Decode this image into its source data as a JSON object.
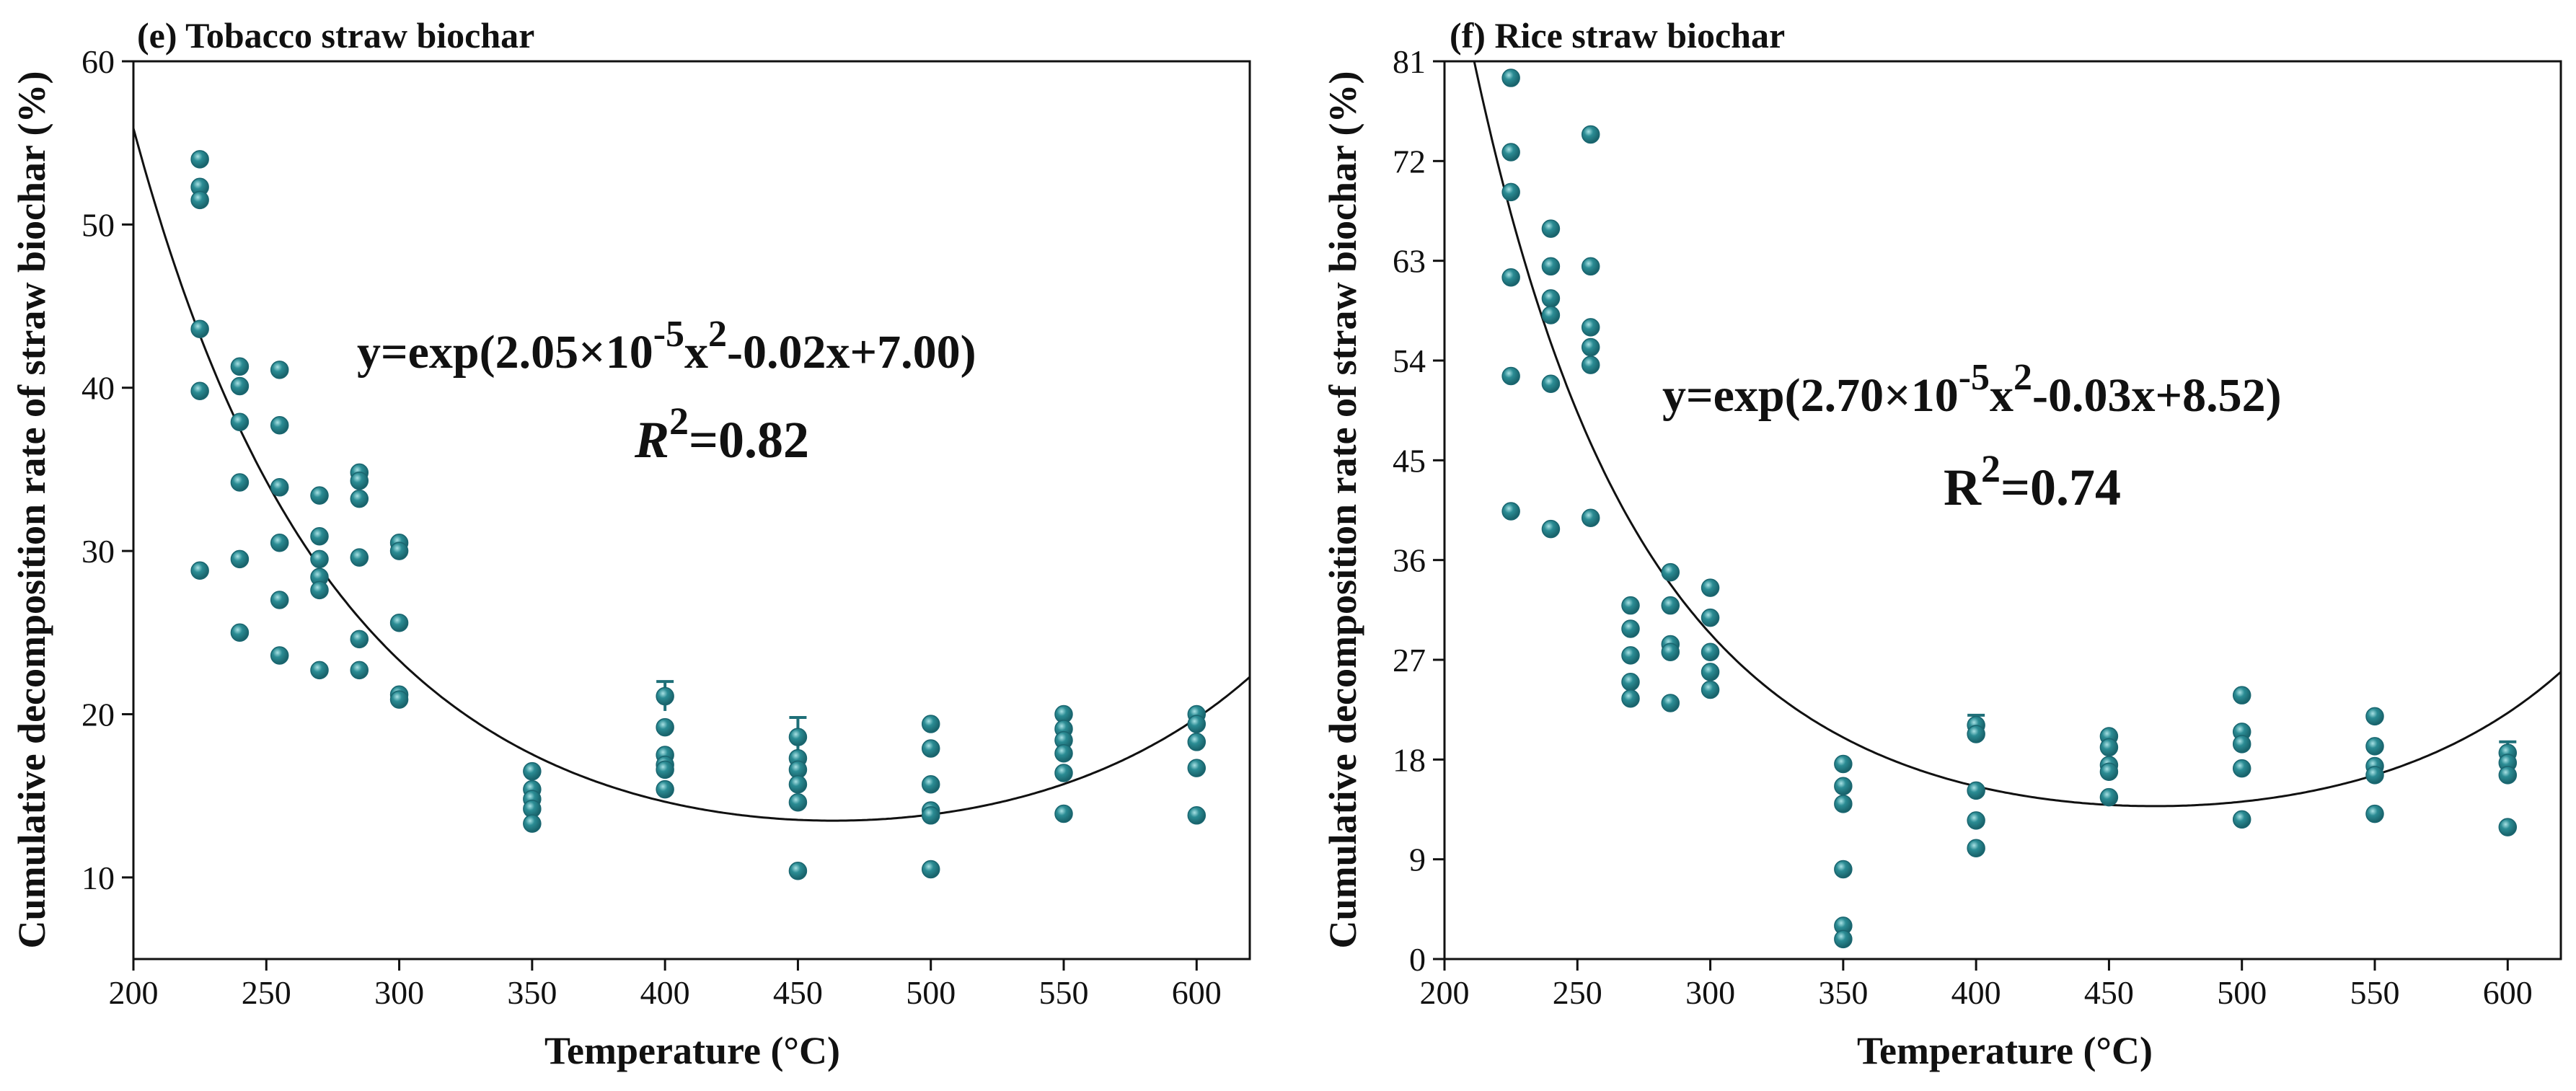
{
  "colors": {
    "point": "#2b8c94",
    "point_edge": "#1a6670",
    "axis": "#111111",
    "fit": "#111111"
  },
  "chart_data": [
    {
      "type": "scatter",
      "title": "(e) Tobacco straw biochar",
      "xlabel": "Temperature (°C)",
      "ylabel": "Cumulative decomposition rate of straw biochar (%)",
      "xlim": [
        200,
        620
      ],
      "ylim": [
        5,
        60
      ],
      "xticks": [
        200,
        250,
        300,
        350,
        400,
        450,
        500,
        550,
        600
      ],
      "yticks": [
        10,
        20,
        30,
        40,
        50,
        60
      ],
      "equation": {
        "prefix": "y=exp(2.05×10",
        "exp1": "-5",
        "mid": "x",
        "exp2": "2",
        "suffix": "-0.02x+7.00)"
      },
      "r2": {
        "R": "R",
        "sup": "2",
        "value": "=0.82",
        "italic": true
      },
      "fit": {
        "a": 2.05e-05,
        "b": -0.019,
        "c": 7.0035
      },
      "points": [
        {
          "x": 225,
          "y": 54.0
        },
        {
          "x": 225,
          "y": 52.3
        },
        {
          "x": 225,
          "y": 51.5
        },
        {
          "x": 225,
          "y": 43.6
        },
        {
          "x": 225,
          "y": 39.8
        },
        {
          "x": 225,
          "y": 28.8
        },
        {
          "x": 240,
          "y": 41.3
        },
        {
          "x": 240,
          "y": 40.1
        },
        {
          "x": 240,
          "y": 37.9
        },
        {
          "x": 240,
          "y": 34.2
        },
        {
          "x": 240,
          "y": 29.5
        },
        {
          "x": 240,
          "y": 25.0
        },
        {
          "x": 255,
          "y": 41.1
        },
        {
          "x": 255,
          "y": 37.7
        },
        {
          "x": 255,
          "y": 33.9
        },
        {
          "x": 255,
          "y": 30.5
        },
        {
          "x": 255,
          "y": 27.0
        },
        {
          "x": 255,
          "y": 23.6
        },
        {
          "x": 270,
          "y": 33.4
        },
        {
          "x": 270,
          "y": 30.9
        },
        {
          "x": 270,
          "y": 29.5
        },
        {
          "x": 270,
          "y": 28.4
        },
        {
          "x": 270,
          "y": 27.6
        },
        {
          "x": 270,
          "y": 22.7
        },
        {
          "x": 285,
          "y": 34.8
        },
        {
          "x": 285,
          "y": 34.3
        },
        {
          "x": 285,
          "y": 33.2
        },
        {
          "x": 285,
          "y": 29.6
        },
        {
          "x": 285,
          "y": 24.6
        },
        {
          "x": 285,
          "y": 22.7
        },
        {
          "x": 300,
          "y": 30.5
        },
        {
          "x": 300,
          "y": 30.0
        },
        {
          "x": 300,
          "y": 25.6
        },
        {
          "x": 300,
          "y": 21.2
        },
        {
          "x": 300,
          "y": 20.9
        },
        {
          "x": 350,
          "y": 16.5
        },
        {
          "x": 350,
          "y": 15.4
        },
        {
          "x": 350,
          "y": 14.8
        },
        {
          "x": 350,
          "y": 14.2
        },
        {
          "x": 350,
          "y": 13.3
        },
        {
          "x": 400,
          "y": 21.1
        },
        {
          "x": 400,
          "y": 19.2
        },
        {
          "x": 400,
          "y": 17.5
        },
        {
          "x": 400,
          "y": 16.9
        },
        {
          "x": 400,
          "y": 16.6
        },
        {
          "x": 400,
          "y": 15.4
        },
        {
          "x": 450,
          "y": 18.6
        },
        {
          "x": 450,
          "y": 17.3
        },
        {
          "x": 450,
          "y": 16.6
        },
        {
          "x": 450,
          "y": 15.7
        },
        {
          "x": 450,
          "y": 14.6
        },
        {
          "x": 450,
          "y": 10.4
        },
        {
          "x": 500,
          "y": 19.4
        },
        {
          "x": 500,
          "y": 17.9
        },
        {
          "x": 500,
          "y": 15.7
        },
        {
          "x": 500,
          "y": 14.1
        },
        {
          "x": 500,
          "y": 13.8
        },
        {
          "x": 500,
          "y": 10.5
        },
        {
          "x": 550,
          "y": 20.0
        },
        {
          "x": 550,
          "y": 19.1
        },
        {
          "x": 550,
          "y": 18.4
        },
        {
          "x": 550,
          "y": 17.6
        },
        {
          "x": 550,
          "y": 16.4
        },
        {
          "x": 550,
          "y": 13.9
        },
        {
          "x": 600,
          "y": 20.0
        },
        {
          "x": 600,
          "y": 19.4
        },
        {
          "x": 600,
          "y": 18.3
        },
        {
          "x": 600,
          "y": 16.7
        },
        {
          "x": 600,
          "y": 13.8
        }
      ],
      "error_bars": [
        {
          "x": 450,
          "low": 16.0,
          "high": 19.8
        },
        {
          "x": 400,
          "low": 20.2,
          "high": 22.0
        },
        {
          "x": 225,
          "low": 51.0,
          "high": 52.2
        }
      ]
    },
    {
      "type": "scatter",
      "title": "(f) Rice straw biochar",
      "xlabel": "Temperature (°C)",
      "ylabel": "Cumulative decomposition rate of straw biochar (%)",
      "xlim": [
        200,
        620
      ],
      "ylim": [
        0,
        81
      ],
      "xticks": [
        200,
        250,
        300,
        350,
        400,
        450,
        500,
        550,
        600
      ],
      "yticks": [
        0,
        9,
        18,
        27,
        36,
        45,
        54,
        63,
        72,
        81
      ],
      "equation": {
        "prefix": "y=exp(2.70×10",
        "exp1": "-5",
        "mid": "x",
        "exp2": "2",
        "suffix": "-0.03x+8.52)"
      },
      "r2": {
        "R": "R",
        "sup": "2",
        "value": "=0.74",
        "italic": false
      },
      "fit": {
        "a": 2.7e-05,
        "b": -0.02523,
        "c": 8.5184
      },
      "points": [
        {
          "x": 225,
          "y": 79.5
        },
        {
          "x": 225,
          "y": 72.8
        },
        {
          "x": 225,
          "y": 69.2
        },
        {
          "x": 225,
          "y": 61.5
        },
        {
          "x": 225,
          "y": 52.6
        },
        {
          "x": 225,
          "y": 40.4
        },
        {
          "x": 240,
          "y": 65.9
        },
        {
          "x": 240,
          "y": 62.5
        },
        {
          "x": 240,
          "y": 59.6
        },
        {
          "x": 240,
          "y": 58.1
        },
        {
          "x": 240,
          "y": 51.9
        },
        {
          "x": 240,
          "y": 38.8
        },
        {
          "x": 255,
          "y": 74.4
        },
        {
          "x": 255,
          "y": 62.5
        },
        {
          "x": 255,
          "y": 57.0
        },
        {
          "x": 255,
          "y": 55.2
        },
        {
          "x": 255,
          "y": 53.6
        },
        {
          "x": 255,
          "y": 39.8
        },
        {
          "x": 270,
          "y": 31.9
        },
        {
          "x": 270,
          "y": 29.8
        },
        {
          "x": 270,
          "y": 27.4
        },
        {
          "x": 270,
          "y": 25.0
        },
        {
          "x": 270,
          "y": 23.5
        },
        {
          "x": 285,
          "y": 34.9
        },
        {
          "x": 285,
          "y": 31.9
        },
        {
          "x": 285,
          "y": 28.4
        },
        {
          "x": 285,
          "y": 27.7
        },
        {
          "x": 285,
          "y": 23.1
        },
        {
          "x": 300,
          "y": 33.5
        },
        {
          "x": 300,
          "y": 30.8
        },
        {
          "x": 300,
          "y": 27.7
        },
        {
          "x": 300,
          "y": 25.9
        },
        {
          "x": 300,
          "y": 24.3
        },
        {
          "x": 350,
          "y": 17.6
        },
        {
          "x": 350,
          "y": 15.6
        },
        {
          "x": 350,
          "y": 14.0
        },
        {
          "x": 350,
          "y": 8.1
        },
        {
          "x": 350,
          "y": 3.0
        },
        {
          "x": 350,
          "y": 1.8
        },
        {
          "x": 400,
          "y": 21.1
        },
        {
          "x": 400,
          "y": 20.3
        },
        {
          "x": 400,
          "y": 15.2
        },
        {
          "x": 400,
          "y": 12.5
        },
        {
          "x": 400,
          "y": 10.0
        },
        {
          "x": 450,
          "y": 20.1
        },
        {
          "x": 450,
          "y": 19.1
        },
        {
          "x": 450,
          "y": 17.5
        },
        {
          "x": 450,
          "y": 16.9
        },
        {
          "x": 450,
          "y": 14.6
        },
        {
          "x": 500,
          "y": 23.8
        },
        {
          "x": 500,
          "y": 20.5
        },
        {
          "x": 500,
          "y": 19.4
        },
        {
          "x": 500,
          "y": 17.2
        },
        {
          "x": 500,
          "y": 12.6
        },
        {
          "x": 550,
          "y": 21.9
        },
        {
          "x": 550,
          "y": 19.2
        },
        {
          "x": 550,
          "y": 17.4
        },
        {
          "x": 550,
          "y": 16.6
        },
        {
          "x": 550,
          "y": 13.1
        },
        {
          "x": 600,
          "y": 18.6
        },
        {
          "x": 600,
          "y": 17.7
        },
        {
          "x": 600,
          "y": 16.6
        },
        {
          "x": 600,
          "y": 11.9
        }
      ],
      "error_bars": [
        {
          "x": 600,
          "low": 17.8,
          "high": 19.6
        },
        {
          "x": 400,
          "low": 20.3,
          "high": 22.0
        }
      ]
    }
  ]
}
